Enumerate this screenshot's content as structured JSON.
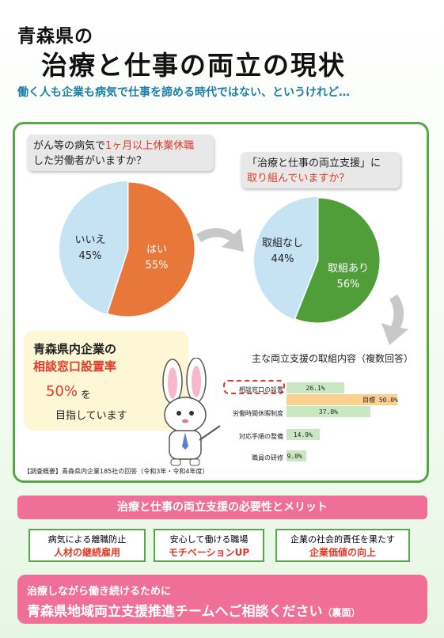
{
  "header": {
    "title_line1": "青森県の",
    "title_line2": "治療と仕事の両立の現状",
    "subtitle": "働く人も企業も病気で仕事を諦める時代ではない、というけれど…"
  },
  "question1": {
    "text_a": "がん等の病気で",
    "highlight": "1ヶ月以上休業休職",
    "text_b": "した労働者がいますか？"
  },
  "question2": {
    "line1": "「治療と仕事の両立支援」に",
    "line2": "取り組んでいますか？"
  },
  "pie1": {
    "slices": [
      {
        "label": "はい",
        "value_label": "55%",
        "value": 55,
        "color": "#e8773a"
      },
      {
        "label": "いいえ",
        "value_label": "45%",
        "value": 45,
        "color": "#c6e3f4"
      }
    ]
  },
  "pie2": {
    "slices": [
      {
        "label": "取組あり",
        "value_label": "56%",
        "value": 56,
        "color": "#4f9e3a"
      },
      {
        "label": "取組なし",
        "value_label": "44%",
        "value": 44,
        "color": "#c6e3f4"
      }
    ]
  },
  "goal": {
    "line1": "青森県内企業の",
    "line2": "相談窓口設置率",
    "value": "50%",
    "wo": "を",
    "line3": "目指しています"
  },
  "chart_data": {
    "type": "bar",
    "title": "主な両立支援の取組内容（複数回答）",
    "categories": [
      "相談窓口の設置",
      "労働時間休暇制度",
      "対応手順の整備",
      "職員の研修"
    ],
    "series": [
      {
        "values": [
          26.1,
          37.8,
          14.9,
          9.0
        ],
        "labels": [
          "26.1%",
          "37.8%",
          "14.9%",
          "9.0%"
        ]
      }
    ],
    "target": {
      "category": "相談窓口の設置",
      "label": "目標",
      "value": 50.0,
      "value_label": "50.0%"
    },
    "xlim": [
      0,
      50
    ]
  },
  "survey_note": "【調査概要】青森県内企業185社の回答（令和3年・令和4年度）",
  "merit": {
    "title": "治療と仕事の両立支援の必要性とメリット",
    "boxes": [
      {
        "top": "病気による離職防止",
        "bottom": "人材の継続雇用"
      },
      {
        "top": "安心して働ける職場",
        "bottom": "モチベーションUP"
      },
      {
        "top": "企業の社会的責任を果たす",
        "bottom": "企業価値の向上"
      }
    ]
  },
  "footer": {
    "line1": "治療しながら働き続けるために",
    "line2": "青森県地域両立支援推進チームへご相談ください",
    "line2_suffix": "（裏面）"
  }
}
